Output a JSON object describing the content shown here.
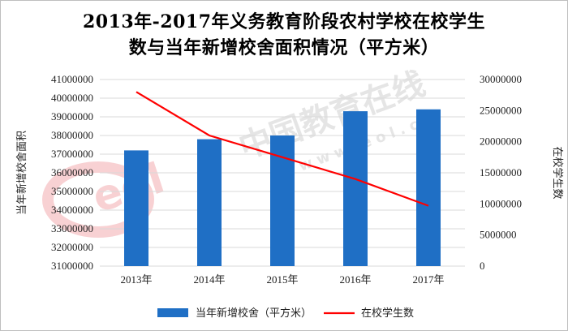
{
  "chart_data": {
    "type": "bar",
    "title_lines": [
      "2013年-2017年义务教育阶段农村学校在校学生",
      "数与当年新增校舍面积情况（平方米）"
    ],
    "categories": [
      "2013年",
      "2014年",
      "2015年",
      "2016年",
      "2017年"
    ],
    "series": [
      {
        "name": "当年新增校舍（平方米）",
        "type": "bar",
        "axis": "left",
        "color": "#1f6fc5",
        "values": [
          37200000,
          37800000,
          38000000,
          39300000,
          39400000
        ]
      },
      {
        "name": "在校学生数",
        "type": "line",
        "axis": "right",
        "color": "#ff0000",
        "values": [
          28000000,
          21000000,
          17500000,
          14000000,
          9700000
        ]
      }
    ],
    "y_left": {
      "label": "当年新增校舍面积",
      "min": 31000000,
      "max": 41000000,
      "step": 1000000,
      "tick_labels": [
        "31000000",
        "32000000",
        "33000000",
        "34000000",
        "35000000",
        "36000000",
        "37000000",
        "38000000",
        "39000000",
        "40000000",
        "41000000"
      ]
    },
    "y_right": {
      "label": "在校学生数",
      "min": 0,
      "max": 30000000,
      "step": 5000000,
      "tick_labels": [
        "0",
        "5000000",
        "10000000",
        "15000000",
        "20000000",
        "25000000",
        "30000000"
      ]
    },
    "grid": true,
    "legend_position": "bottom"
  },
  "watermark": {
    "logo_text": "eol",
    "brand_text": "中国教育在线",
    "url_text": "w w w . e o l . c n"
  }
}
